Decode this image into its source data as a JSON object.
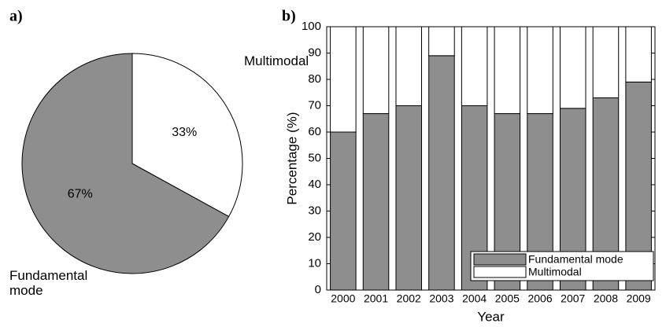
{
  "chart_data": [
    {
      "type": "pie",
      "panel_label": "a)",
      "labels": [
        "Fundamental mode",
        "Multimodal"
      ],
      "values": [
        67,
        33
      ],
      "value_labels": [
        "67%",
        "33%"
      ],
      "colors": [
        "#8e8e8e",
        "#ffffff"
      ]
    },
    {
      "type": "bar",
      "stacked": true,
      "panel_label": "b)",
      "xlabel": "Year",
      "ylabel": "Percentage (%)",
      "categories": [
        "2000",
        "2001",
        "2002",
        "2003",
        "2004",
        "2005",
        "2006",
        "2007",
        "2008",
        "2009"
      ],
      "series": [
        {
          "name": "Fundamental mode",
          "color": "#8e8e8e",
          "values": [
            60,
            67,
            70,
            89,
            70,
            67,
            67,
            69,
            73,
            79
          ]
        },
        {
          "name": "Multimodal",
          "color": "#ffffff",
          "values": [
            40,
            33,
            30,
            11,
            30,
            33,
            33,
            31,
            27,
            21
          ]
        }
      ],
      "ylim": [
        0,
        100
      ],
      "yticks": [
        0,
        10,
        20,
        30,
        40,
        50,
        60,
        70,
        80,
        90,
        100
      ],
      "legend": "lower right"
    }
  ]
}
